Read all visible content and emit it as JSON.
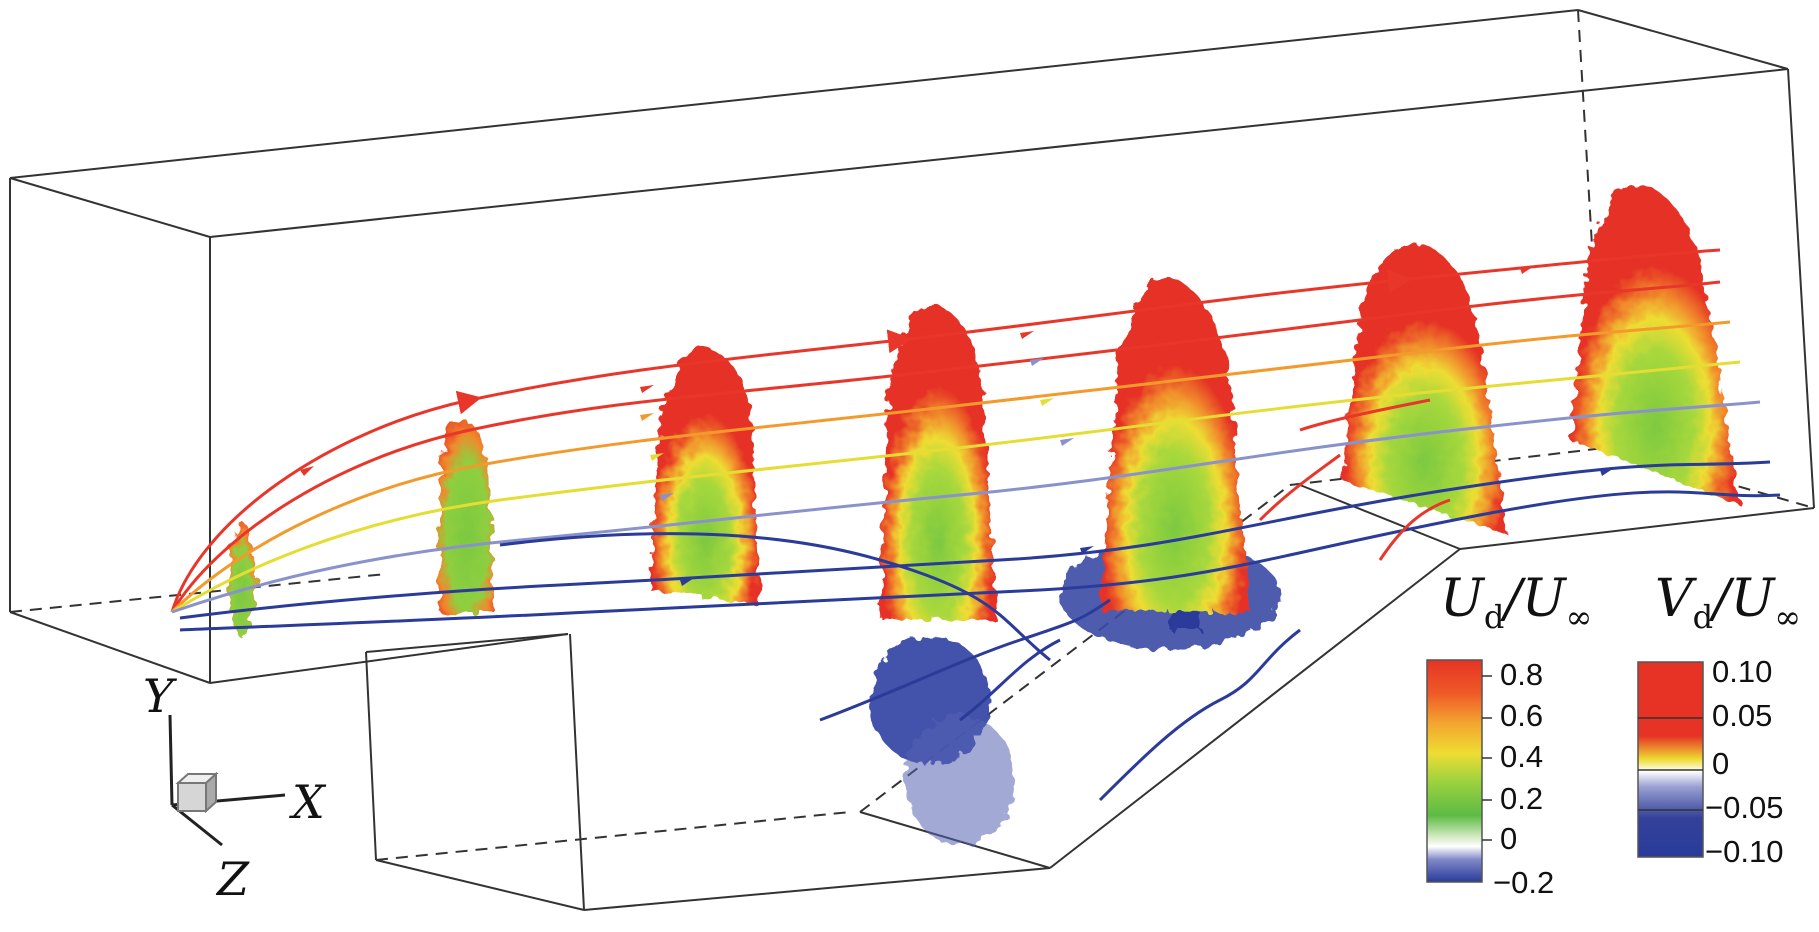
{
  "figure": {
    "axes": {
      "y": "Y",
      "x": "X",
      "z": "Z"
    },
    "colorbars": [
      {
        "variable_main": "U",
        "variable_sub": "d",
        "over": "/U",
        "over_sub": "∞",
        "ticks": [
          "0.8",
          "0.6",
          "0.4",
          "0.2",
          "0",
          "−0.2"
        ],
        "colors": [
          "#e63325",
          "#f08a2c",
          "#eedd33",
          "#7cc940",
          "#ffffff",
          "#33419a"
        ]
      },
      {
        "variable_main": "V",
        "variable_sub": "d",
        "over": "/U",
        "over_sub": "∞",
        "ticks": [
          "0.10",
          "0.05",
          "0",
          "−0.05",
          "−0.10"
        ],
        "colors": [
          "#e63325",
          "#eedd33",
          "#ffffff",
          "#33419a"
        ]
      }
    ],
    "streamline_colors": [
      "#e8372a",
      "#f39a2c",
      "#e5dd34",
      "#8a92cc",
      "#2a3b9a"
    ]
  }
}
